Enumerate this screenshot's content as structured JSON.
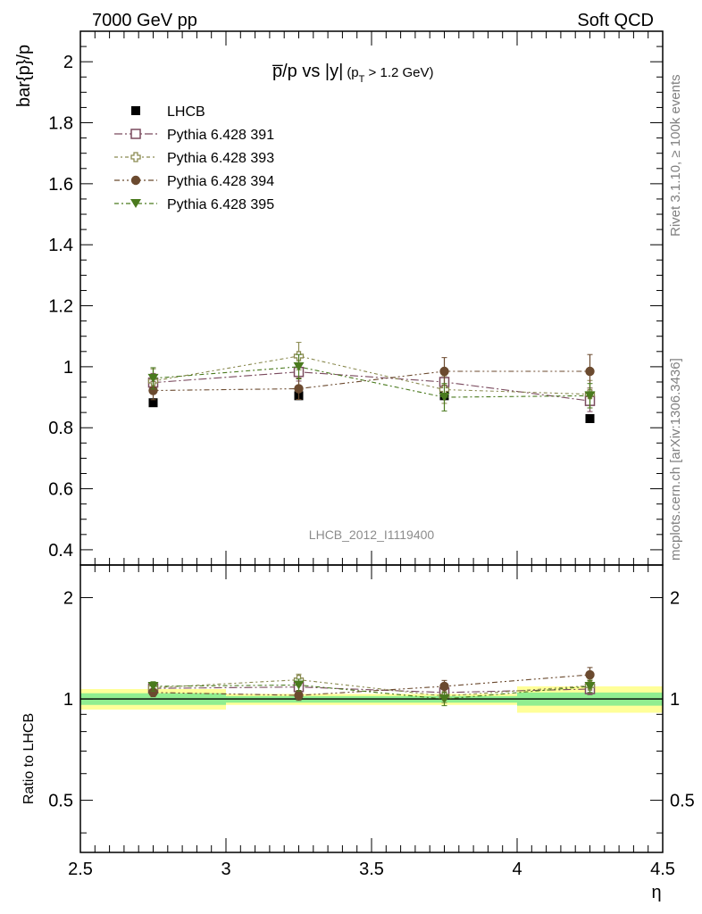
{
  "header": {
    "left": "7000 GeV pp",
    "right": "Soft QCD"
  },
  "side_labels": {
    "rivet": "Rivet 3.1.10, ≥ 100k events",
    "mcplots": "mcplots.cern.ch [arXiv:1306.3436]"
  },
  "colors": {
    "lhcb": "#000000",
    "pythia391": "#7a4a5e",
    "pythia393": "#8a8a50",
    "pythia394": "#6b4a2f",
    "pythia395": "#4a7a1e",
    "band_green": "#90ee90",
    "band_yellow": "#ffff99"
  },
  "chart_data": [
    {
      "type": "line",
      "panel": "main",
      "title": "p̅/p vs |y|",
      "title_condition": "(p",
      "title_sub": "T",
      "title_cond_tail": " > 1.2 GeV)",
      "ylabel": "bar{p}/p",
      "watermark": "LHCB_2012_I1119400",
      "xlim": [
        2.5,
        4.5
      ],
      "ylim": [
        0.35,
        2.1
      ],
      "yticks": [
        "0.4",
        "0.6",
        "0.8",
        "1",
        "1.2",
        "1.4",
        "1.6",
        "1.8",
        "2"
      ],
      "x": [
        2.75,
        3.25,
        3.75,
        4.25
      ],
      "series": [
        {
          "name": "LHCB",
          "marker": "filled-square",
          "values": [
            0.882,
            0.905,
            0.905,
            0.83
          ],
          "err": [
            0.0,
            0.0,
            0.0,
            0.0
          ]
        },
        {
          "name": "Pythia 6.428 391",
          "marker": "open-square",
          "values": [
            0.948,
            0.983,
            0.95,
            0.888
          ],
          "err": [
            0.03,
            0.03,
            0.035,
            0.035
          ]
        },
        {
          "name": "Pythia 6.428 393",
          "marker": "open-cross",
          "values": [
            0.953,
            1.035,
            0.925,
            0.91
          ],
          "err": [
            0.04,
            0.045,
            0.045,
            0.045
          ]
        },
        {
          "name": "Pythia 6.428 394",
          "marker": "filled-circle",
          "values": [
            0.922,
            0.928,
            0.985,
            0.985
          ],
          "err": [
            0.03,
            0.035,
            0.045,
            0.055
          ]
        },
        {
          "name": "Pythia 6.428 395",
          "marker": "filled-triangle-down",
          "values": [
            0.962,
            1.0,
            0.9,
            0.905
          ],
          "err": [
            0.035,
            0.04,
            0.045,
            0.04
          ]
        }
      ]
    },
    {
      "type": "line",
      "panel": "ratio",
      "ylabel": "Ratio to LHCB",
      "xlabel": "η",
      "xlim": [
        2.5,
        4.5
      ],
      "ylim": [
        0.35,
        2.5
      ],
      "yscale": "log",
      "yticks": [
        "0.5",
        "1",
        "2"
      ],
      "xticks": [
        "2.5",
        "3",
        "3.5",
        "4",
        "4.5"
      ],
      "x": [
        2.75,
        3.25,
        3.75,
        4.25
      ],
      "bands": [
        {
          "x0": 2.5,
          "x1": 3.0,
          "green": [
            0.96,
            1.04
          ],
          "yellow": [
            0.93,
            1.07
          ]
        },
        {
          "x0": 3.0,
          "x1": 3.5,
          "green": [
            0.975,
            1.02
          ],
          "yellow": [
            0.96,
            1.035
          ]
        },
        {
          "x0": 3.5,
          "x1": 4.0,
          "green": [
            0.975,
            1.02
          ],
          "yellow": [
            0.96,
            1.035
          ]
        },
        {
          "x0": 4.0,
          "x1": 4.5,
          "green": [
            0.955,
            1.045
          ],
          "yellow": [
            0.91,
            1.09
          ]
        }
      ],
      "series": [
        {
          "name": "Pythia 6.428 391",
          "marker": "open-square",
          "values": [
            1.075,
            1.085,
            1.045,
            1.07
          ],
          "err": [
            0.03,
            0.035,
            0.035,
            0.04
          ]
        },
        {
          "name": "Pythia 6.428 393",
          "marker": "open-cross",
          "values": [
            1.08,
            1.14,
            1.02,
            1.095
          ],
          "err": [
            0.04,
            0.045,
            0.045,
            0.05
          ]
        },
        {
          "name": "Pythia 6.428 394",
          "marker": "filled-circle",
          "values": [
            1.045,
            1.025,
            1.09,
            1.18
          ],
          "err": [
            0.03,
            0.035,
            0.045,
            0.06
          ]
        },
        {
          "name": "Pythia 6.428 395",
          "marker": "filled-triangle-down",
          "values": [
            1.09,
            1.1,
            1.0,
            1.09
          ],
          "err": [
            0.035,
            0.045,
            0.045,
            0.045
          ]
        }
      ]
    }
  ]
}
